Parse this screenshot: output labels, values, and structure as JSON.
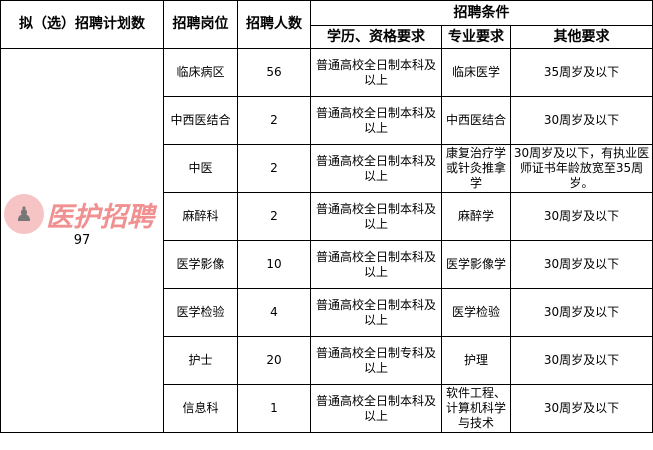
{
  "headers": {
    "plan": "拟（选）招聘计划数",
    "position": "招聘岗位",
    "count": "招聘人数",
    "conditions": "招聘条件",
    "edu": "学历、资格要求",
    "major": "专业要求",
    "other": "其他要求"
  },
  "plan_total": "97",
  "rows": [
    {
      "position": "临床病区",
      "count": "56",
      "edu": "普通高校全日制本科及以上",
      "major": "临床医学",
      "other": "35周岁及以下"
    },
    {
      "position": "中西医结合",
      "count": "2",
      "edu": "普通高校全日制本科及以上",
      "major": "中西医结合",
      "other": "30周岁及以下"
    },
    {
      "position": "中医",
      "count": "2",
      "edu": "普通高校全日制本科及以上",
      "major": "康复治疗学或针灸推拿学",
      "other": "30周岁及以下，有执业医师证书年龄放宽至35周岁。"
    },
    {
      "position": "麻醉科",
      "count": "2",
      "edu": "普通高校全日制本科及以上",
      "major": "麻醉学",
      "other": "30周岁及以下"
    },
    {
      "position": "医学影像",
      "count": "10",
      "edu": "普通高校全日制本科及以上",
      "major": "医学影像学",
      "other": "30周岁及以下"
    },
    {
      "position": "医学检验",
      "count": "4",
      "edu": "普通高校全日制本科及以上",
      "major": "医学检验",
      "other": "30周岁及以下"
    },
    {
      "position": "护士",
      "count": "20",
      "edu": "普通高校全日制专科及以上",
      "major": "护理",
      "other": "30周岁及以下"
    },
    {
      "position": "信息科",
      "count": "1",
      "edu": "普通高校全日制本科及以上",
      "major": "软件工程、计算机科学与技术",
      "other": "30周岁及以下"
    }
  ],
  "watermark": "医护招聘"
}
